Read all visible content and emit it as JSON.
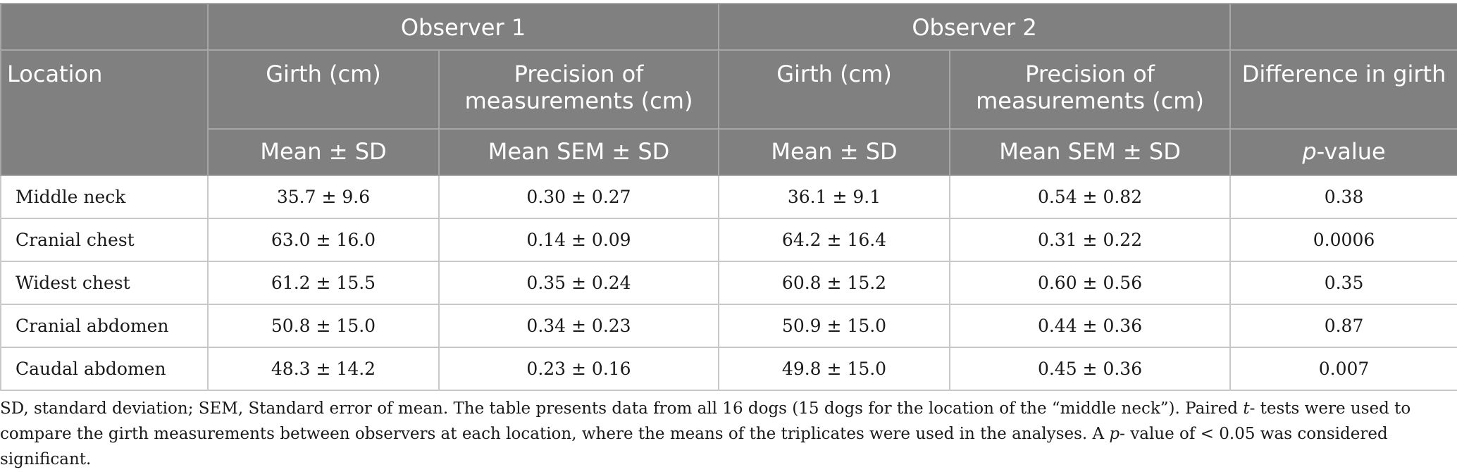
{
  "header": {
    "observer1": "Observer 1",
    "observer2": "Observer 2",
    "location": "Location",
    "girth": "Girth (cm)",
    "precision": "Precision of measurements (cm)",
    "difference": "Difference in girth",
    "mean_sd": "Mean ± SD",
    "mean_sem_sd": "Mean SEM ± SD",
    "p_letter": "p",
    "p_rest": "-value"
  },
  "rows": [
    {
      "location": "Middle neck",
      "o1_girth": "35.7 ± 9.6",
      "o1_precision": "0.30 ± 0.27",
      "o2_girth": "36.1 ± 9.1",
      "o2_precision": "0.54 ± 0.82",
      "p": "0.38"
    },
    {
      "location": "Cranial chest",
      "o1_girth": "63.0 ± 16.0",
      "o1_precision": "0.14 ± 0.09",
      "o2_girth": "64.2 ± 16.4",
      "o2_precision": "0.31 ± 0.22",
      "p": "0.0006"
    },
    {
      "location": "Widest chest",
      "o1_girth": "61.2 ± 15.5",
      "o1_precision": "0.35 ± 0.24",
      "o2_girth": "60.8 ± 15.2",
      "o2_precision": "0.60 ± 0.56",
      "p": "0.35"
    },
    {
      "location": "Cranial abdomen",
      "o1_girth": "50.8 ± 15.0",
      "o1_precision": "0.34 ± 0.23",
      "o2_girth": "50.9 ± 15.0",
      "o2_precision": "0.44 ± 0.36",
      "p": "0.87"
    },
    {
      "location": "Caudal abdomen",
      "o1_girth": "48.3 ± 14.2",
      "o1_precision": "0.23 ± 0.16",
      "o2_girth": "49.8 ± 15.0",
      "o2_precision": "0.45 ± 0.36",
      "p": "0.007"
    }
  ],
  "footnote": {
    "part1": "SD, standard deviation; SEM, Standard error of mean. The table presents data from all 16 dogs (15 dogs for the location of the “middle neck”). Paired ",
    "t": "t",
    "part2": "- tests were used to compare the girth measurements between observers at each location, where the means of the triplicates were used in the analyses. A ",
    "p": "p",
    "part3": "- value of < 0.05 was considered significant."
  }
}
